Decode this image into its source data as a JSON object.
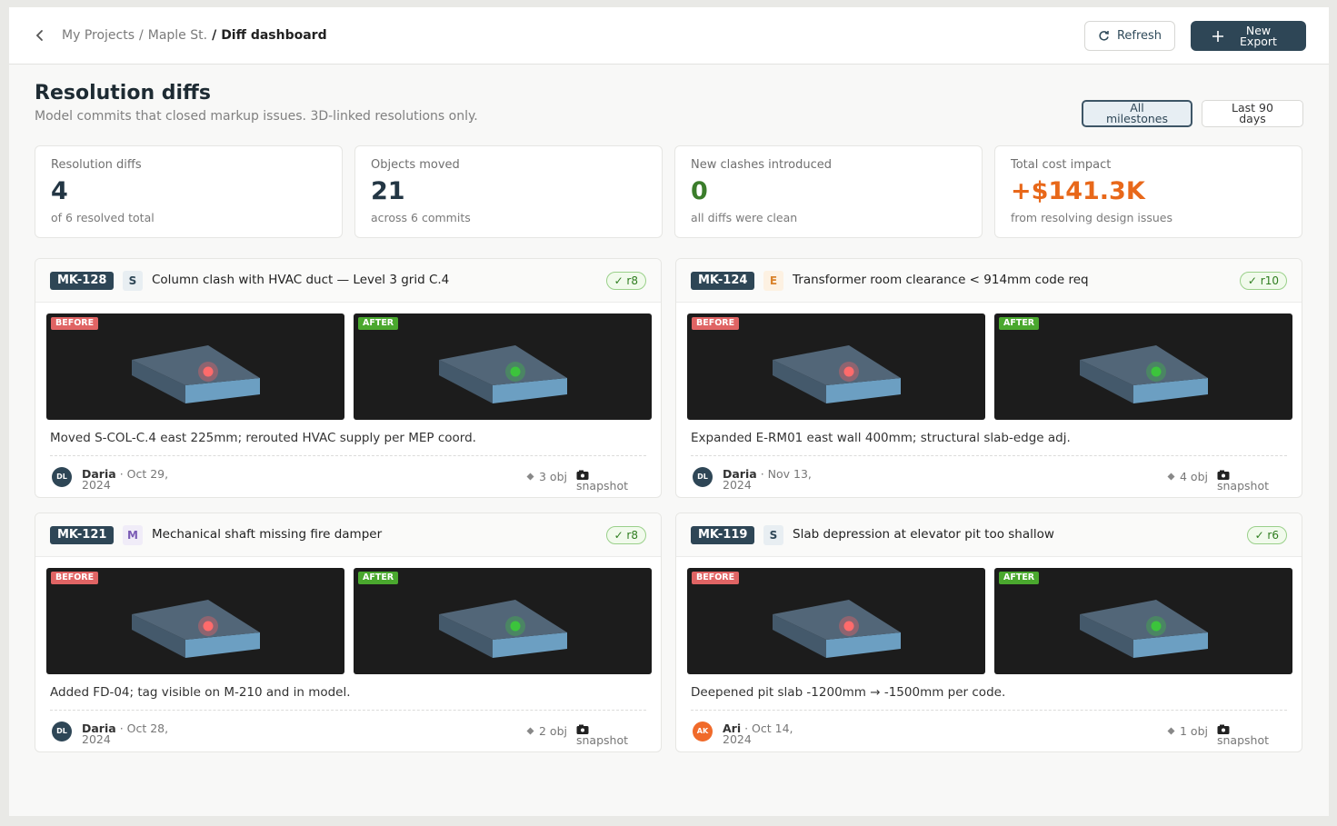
{
  "breadcrumb": {
    "items": [
      "My Projects",
      "Maple St."
    ],
    "separator": "/",
    "current": "Diff dashboard"
  },
  "actions": {
    "refresh": "Refresh",
    "new_export": "New Export"
  },
  "header": {
    "title": "Resolution diffs",
    "subtitle": "Model commits that closed markup issues. 3D-linked resolutions only."
  },
  "filters": {
    "items": [
      "All milestones",
      "Last 90 days"
    ],
    "active": 0
  },
  "stats": [
    {
      "label": "Resolution diffs",
      "value": 4,
      "note": "of 6 resolved total",
      "tone": "dark"
    },
    {
      "label": "Objects moved",
      "value": 21,
      "note": "across 6 commits",
      "tone": "dark"
    },
    {
      "label": "New clashes introduced",
      "value": 0,
      "note": "all diffs were clean",
      "tone": "green"
    },
    {
      "label": "Total cost impact",
      "value": "+$141.3K",
      "note": "from resolving design issues",
      "tone": "orange"
    }
  ],
  "cards": [
    {
      "id": "MK-128",
      "discipline": "S",
      "title": "Column clash with HVAC duct — Level 3 grid C.4",
      "revision": "✓ r8",
      "before": "BEFORE",
      "after": "AFTER",
      "note": "Moved S-COL-C.4 east 225mm; rerouted HVAC supply per MEP coord.",
      "initials": "DL",
      "author": "Daria",
      "date": "· Oct 29, 2024",
      "objects": "3 obj",
      "snapshot": "snapshot"
    },
    {
      "id": "MK-124",
      "discipline": "E",
      "title": "Transformer room clearance < 914mm code req",
      "revision": "✓ r10",
      "before": "BEFORE",
      "after": "AFTER",
      "note": "Expanded E-RM01 east wall 400mm; structural slab-edge adj.",
      "initials": "DL",
      "author": "Daria",
      "date": "· Nov 13, 2024",
      "objects": "4 obj",
      "snapshot": "snapshot"
    },
    {
      "id": "MK-121",
      "discipline": "M",
      "title": "Mechanical shaft missing fire damper",
      "revision": "✓ r8",
      "before": "BEFORE",
      "after": "AFTER",
      "note": "Added FD-04; tag visible on M-210 and in model.",
      "initials": "DL",
      "author": "Daria",
      "date": "· Oct 28, 2024",
      "objects": "2 obj",
      "snapshot": "snapshot"
    },
    {
      "id": "MK-119",
      "discipline": "S",
      "title": "Slab depression at elevator pit too shallow",
      "revision": "✓ r6",
      "before": "BEFORE",
      "after": "AFTER",
      "note": "Deepened pit slab -1200mm → -1500mm per code.",
      "initials": "AK",
      "author": "Ari",
      "date": "· Oct 14, 2024",
      "objects": "1 obj",
      "snapshot": "snapshot"
    }
  ]
}
